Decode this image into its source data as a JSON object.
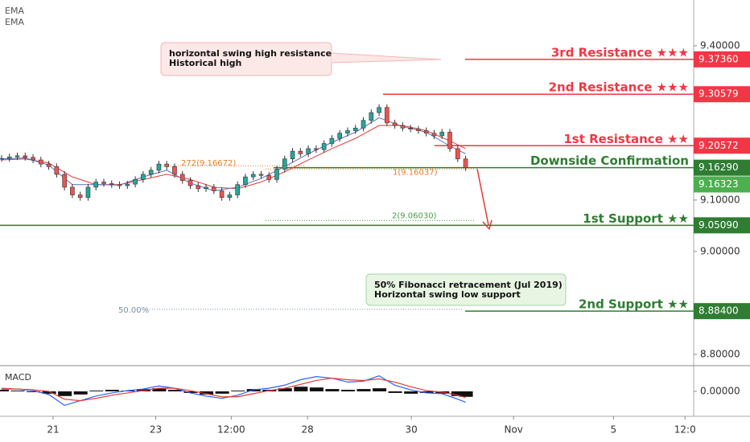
{
  "chart_data": {
    "type": "candlestick",
    "legend": [
      "EMA",
      "EMA"
    ],
    "xlim": [
      -0.2,
      88
    ],
    "xticks": [
      {
        "value": 6.55,
        "label": "21"
      },
      {
        "value": 19.6,
        "label": "23"
      },
      {
        "value": 29.2,
        "label": "12:00"
      },
      {
        "value": 38.9,
        "label": "28"
      },
      {
        "value": 52.1,
        "label": "30"
      },
      {
        "value": 65.1,
        "label": "Nov"
      },
      {
        "value": 77.8,
        "label": "5"
      },
      {
        "value": 86.9,
        "label": "12:0"
      }
    ],
    "ylim": [
      8.778,
      9.489
    ],
    "yticks": [
      {
        "value": 9.4,
        "label": "9.40000"
      },
      {
        "value": 9.1,
        "label": "9.10000"
      },
      {
        "value": 9.0,
        "label": "9.00000"
      },
      {
        "value": 8.8,
        "label": "8.80000"
      }
    ],
    "x": [
      0,
      1,
      2,
      3,
      4,
      5,
      6,
      7,
      8,
      9,
      10,
      11,
      12,
      13,
      14,
      15,
      16,
      17,
      18,
      19,
      20,
      21,
      22,
      23,
      24,
      25,
      26,
      27,
      28,
      29,
      30,
      31,
      32,
      33,
      34,
      35,
      36,
      37,
      38,
      39,
      40,
      41,
      42,
      43,
      44,
      45,
      46,
      47,
      48,
      49,
      50,
      51,
      52,
      53,
      54,
      55,
      56,
      57,
      58,
      59
    ],
    "values": [
      9.181,
      9.184,
      9.186,
      9.183,
      9.178,
      9.17,
      9.165,
      9.15,
      9.125,
      9.11,
      9.105,
      9.125,
      9.135,
      9.132,
      9.13,
      9.128,
      9.131,
      9.14,
      9.15,
      9.158,
      9.17,
      9.165,
      9.15,
      9.138,
      9.128,
      9.122,
      9.125,
      9.118,
      9.105,
      9.11,
      9.13,
      9.145,
      9.15,
      9.148,
      9.14,
      9.16,
      9.18,
      9.195,
      9.19,
      9.2,
      9.198,
      9.21,
      9.22,
      9.23,
      9.235,
      9.24,
      9.255,
      9.27,
      9.28,
      9.25,
      9.245,
      9.24,
      9.238,
      9.235,
      9.23,
      9.225,
      9.232,
      9.2,
      9.18,
      9.163
    ],
    "up_color": "#26a69a",
    "down_color": "#ef5350",
    "series": [
      {
        "name": "EMA",
        "color": "#e53935",
        "x": [
          0,
          3,
          6,
          9,
          12,
          15,
          18,
          21,
          24,
          27,
          30,
          33,
          36,
          39,
          42,
          45,
          48,
          51,
          54,
          57,
          59
        ],
        "values": [
          9.178,
          9.18,
          9.172,
          9.145,
          9.13,
          9.13,
          9.14,
          9.15,
          9.14,
          9.125,
          9.122,
          9.135,
          9.155,
          9.178,
          9.2,
          9.22,
          9.245,
          9.245,
          9.235,
          9.215,
          9.2
        ]
      },
      {
        "name": "EMA",
        "color": "#5c6bc0",
        "x": [
          0,
          3,
          6,
          9,
          12,
          15,
          18,
          21,
          24,
          27,
          30,
          33,
          36,
          39,
          42,
          45,
          48,
          51,
          54,
          57,
          59
        ],
        "values": [
          9.18,
          9.182,
          9.168,
          9.13,
          9.13,
          9.129,
          9.145,
          9.158,
          9.133,
          9.118,
          9.125,
          9.142,
          9.165,
          9.19,
          9.212,
          9.232,
          9.26,
          9.243,
          9.232,
          9.205,
          9.19
        ]
      }
    ],
    "levels": [
      {
        "label": "3rd Resistance ★★★",
        "value": 9.3736,
        "value_label": "9.37360",
        "color": "#f23645"
      },
      {
        "label": "2nd Resistance ★★★",
        "value": 9.30579,
        "value_label": "9.30579",
        "color": "#f23645"
      },
      {
        "label": "1st Resistance ★★",
        "value": 9.20572,
        "value_label": "9.20572",
        "color": "#f23645"
      },
      {
        "label": "Downside Confirmation",
        "value": 9.1629,
        "value_label": "9.16290",
        "color": "#2e7d32"
      },
      {
        "label": "1st Support ★★",
        "value": 9.0509,
        "value_label": "9.05090",
        "color": "#2e7d32"
      },
      {
        "label": "2nd Support ★★",
        "value": 8.884,
        "value_label": "8.88400",
        "color": "#2e7d32"
      }
    ],
    "last_price": 9.16323,
    "last_price_label": "9.16323",
    "fib": [
      {
        "label": "272(9.16672)",
        "value": 9.16672,
        "color": "#e67e22"
      },
      {
        "label": "1(9.16037)",
        "value": 9.16037,
        "color": "#e67e22"
      },
      {
        "label": "2(9.06030)",
        "value": 9.0603,
        "color": "#43a047"
      },
      {
        "label": "50.00%",
        "value": 8.8875,
        "color": "#7891a8"
      }
    ],
    "annotations": [
      {
        "lines": [
          "horizontal swing high resistance",
          "Historical high"
        ],
        "color": "red"
      },
      {
        "lines": [
          "50% Fibonacci retracement (Jul 2019)",
          "Horizontal swing low support"
        ],
        "color": "green"
      }
    ],
    "macd": {
      "title": "MACD",
      "ylim": [
        -0.03,
        0.03
      ],
      "yticks": [
        {
          "value": 0,
          "label": "0.00000"
        }
      ],
      "x": [
        0,
        2,
        4,
        6,
        8,
        10,
        12,
        14,
        16,
        18,
        20,
        22,
        24,
        26,
        28,
        30,
        32,
        34,
        36,
        38,
        40,
        42,
        44,
        46,
        48,
        50,
        52,
        54,
        56,
        58,
        59
      ],
      "histogram": [
        0.002,
        0.001,
        -0.001,
        -0.003,
        -0.006,
        -0.004,
        0.001,
        0.002,
        0.001,
        0.003,
        0.004,
        0.002,
        -0.002,
        -0.004,
        -0.003,
        0.001,
        0.003,
        0.002,
        0.004,
        0.006,
        0.005,
        0.003,
        0.002,
        0.003,
        0.004,
        -0.002,
        -0.003,
        -0.002,
        -0.003,
        -0.006,
        -0.007
      ],
      "line": [
        0.003,
        0.003,
        0.001,
        -0.004,
        -0.018,
        -0.012,
        -0.006,
        -0.002,
        0.001,
        0.003,
        0.007,
        0.004,
        -0.002,
        -0.006,
        -0.009,
        -0.005,
        0.002,
        0.004,
        0.008,
        0.015,
        0.019,
        0.017,
        0.012,
        0.013,
        0.02,
        0.008,
        0.002,
        -0.002,
        -0.003,
        -0.01,
        -0.014
      ],
      "signal": [
        0.004,
        0.003,
        0.002,
        0.0,
        -0.01,
        -0.012,
        -0.009,
        -0.005,
        -0.002,
        0.001,
        0.004,
        0.004,
        0.001,
        -0.003,
        -0.007,
        -0.007,
        -0.003,
        0.001,
        0.004,
        0.009,
        0.014,
        0.017,
        0.015,
        0.014,
        0.016,
        0.012,
        0.006,
        0.001,
        -0.001,
        -0.005,
        -0.008
      ],
      "line_color": "#2962ff",
      "signal_color": "#e53935",
      "hist_color": "#111111"
    }
  }
}
